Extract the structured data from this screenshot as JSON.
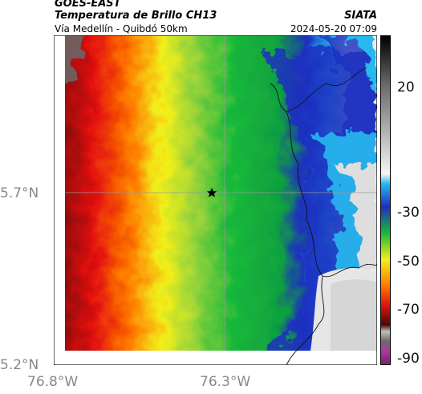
{
  "header": {
    "source": "GOES-EAST",
    "product": "Temperatura de Brillo CH13",
    "region": "Vía Medellín - Quibdó 50km",
    "agency": "SIATA",
    "datetime": "2024-05-20 07:09"
  },
  "axes": {
    "lat_ticks": [
      "5.7°N",
      "5.2°N"
    ],
    "lon_ticks": [
      "76.8°W",
      "76.3°W"
    ]
  },
  "colorbar": {
    "ticks": [
      "20",
      "-30",
      "-50",
      "-70",
      "-90"
    ],
    "colors": {
      "white": "#f2f2f2",
      "cyan": "#27b8ee",
      "blue": "#1c2fc0",
      "green": "#18b83a",
      "yellow": "#f2ef1a",
      "orange": "#ff7a00",
      "red": "#e3120b",
      "darkred": "#4a0808",
      "magenta": "#b0369a"
    }
  },
  "map": {
    "marker_icon": "star-icon"
  }
}
